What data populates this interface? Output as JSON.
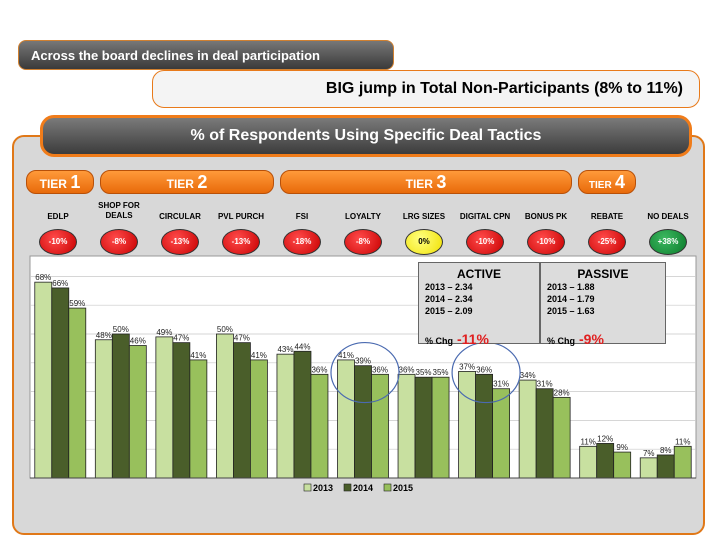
{
  "header": {
    "banner1": "Across the board declines in deal participation",
    "banner2": "BIG jump in Total Non-Participants (8% to 11%)"
  },
  "panel_title": "% of Respondents Using Specific Deal Tactics",
  "tiers": [
    {
      "label": "TIER",
      "num": "1"
    },
    {
      "label": "TIER",
      "num": "2"
    },
    {
      "label": "TIER",
      "num": "3"
    },
    {
      "label": "TIER",
      "num": "4"
    }
  ],
  "changes": [
    "-10%",
    "-8%",
    "-13%",
    "-13%",
    "-18%",
    "-8%",
    "0%",
    "-10%",
    "-10%",
    "-25%",
    "+38%"
  ],
  "active_box": {
    "title": "ACTIVE",
    "lines": [
      "2013 – 2.34",
      "2014 – 2.34",
      "2015 – 2.09"
    ],
    "pct_label": "% Chg",
    "pct_value": "-11%"
  },
  "passive_box": {
    "title": "PASSIVE",
    "lines": [
      "2013 – 1.88",
      "2014 – 1.79",
      "2015 – 1.63"
    ],
    "pct_label": "% Chg",
    "pct_value": "-9%"
  },
  "colors": {
    "s2013": "#c8e0a0",
    "s2014": "#4a5e2a",
    "s2015": "#98c05c",
    "accent": "#f07c1a",
    "negative": "#d00000",
    "neutral": "#f0e000",
    "positive": "#107a30"
  },
  "chart_data": {
    "type": "bar",
    "categories": [
      "EDLP",
      "SHOP FOR DEALS",
      "CIRCULAR",
      "PVL PURCH",
      "FSI",
      "LOYALTY",
      "LRG SIZES",
      "DIGITAL CPN",
      "BONUS PK",
      "REBATE",
      "NO DEALS"
    ],
    "series": [
      {
        "name": "2013",
        "values": [
          68,
          48,
          49,
          50,
          43,
          41,
          36,
          37,
          34,
          11,
          7
        ]
      },
      {
        "name": "2014",
        "values": [
          66,
          50,
          47,
          47,
          44,
          39,
          35,
          36,
          31,
          12,
          8
        ]
      },
      {
        "name": "2015",
        "values": [
          59,
          46,
          41,
          41,
          36,
          36,
          35,
          31,
          28,
          9,
          11
        ]
      }
    ],
    "value_labels": [
      [
        "68%",
        "48%",
        "49%",
        "50%",
        "43%",
        "41%",
        "36%",
        "37%",
        "34%",
        "11%",
        "7%"
      ],
      [
        "66%",
        "50%",
        "47%",
        "47%",
        "44%",
        "39%",
        "35%",
        "36%",
        "31%",
        "12%",
        "8%"
      ],
      [
        "59%",
        "46%",
        "41%",
        "41%",
        "36%",
        "36%",
        "35%",
        "31%",
        "28%",
        "9%",
        "11%"
      ]
    ],
    "ylim": [
      0,
      75
    ],
    "grid": true,
    "legend": "bottom-center"
  }
}
